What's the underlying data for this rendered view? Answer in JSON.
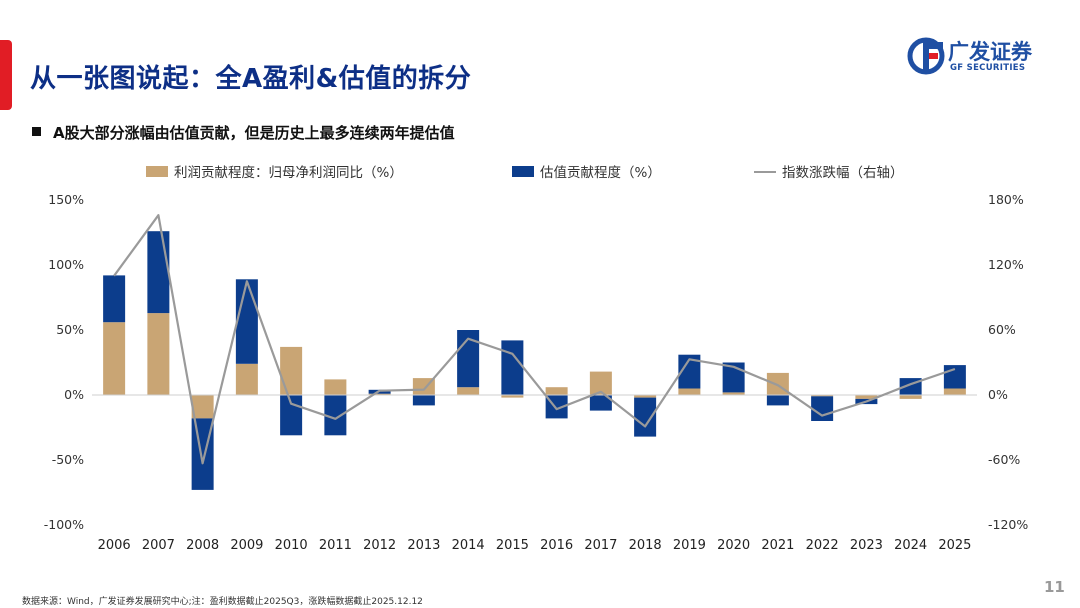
{
  "title": "从一张图说起：全A盈利&估值的拆分",
  "subtitle": "A股大部分涨幅由估值贡献，但是历史上最多连续两年提估值",
  "logo": {
    "cn": "广发证券",
    "en": "GF SECURITIES"
  },
  "footer": {
    "source": "数据来源：Wind，广发证券发展研究中心;注：盈利数据截止2025Q3，涨跌幅数据截止2025.12.12",
    "page": "11"
  },
  "colors": {
    "title": "#0d2f86",
    "profit": "#c9a574",
    "valuation": "#0c3d8c",
    "index": "#9a9a9a",
    "accent": "#e11d25"
  },
  "chart_data": {
    "type": "bar",
    "stacked": true,
    "categories": [
      "2006",
      "2007",
      "2008",
      "2009",
      "2010",
      "2011",
      "2012",
      "2013",
      "2014",
      "2015",
      "2016",
      "2017",
      "2018",
      "2019",
      "2020",
      "2021",
      "2022",
      "2023",
      "2024",
      "2025"
    ],
    "series": [
      {
        "name": "利润贡献程度：归母净利润同比（%）",
        "kind": "bar",
        "axis": "left",
        "values": [
          56,
          63,
          -18,
          24,
          37,
          12,
          1,
          13,
          6,
          -2,
          6,
          18,
          -2,
          5,
          2,
          17,
          -1,
          -3,
          -3,
          5
        ]
      },
      {
        "name": "估值贡献程度（%）",
        "kind": "bar",
        "axis": "left",
        "values": [
          36,
          63,
          -55,
          65,
          -31,
          -31,
          3,
          -8,
          44,
          42,
          -18,
          -12,
          -30,
          26,
          23,
          -8,
          -19,
          -4,
          13,
          18
        ]
      },
      {
        "name": "指数涨跌幅（右轴）",
        "kind": "line",
        "axis": "right",
        "values": [
          110,
          166,
          -63,
          105,
          -8,
          -22,
          4,
          5,
          52,
          38,
          -13,
          3,
          -29,
          33,
          26,
          9,
          -19,
          -6,
          10,
          24
        ]
      }
    ],
    "y_left": {
      "min": -100,
      "max": 150,
      "step": 50,
      "ticks": [
        "150%",
        "100%",
        "50%",
        "0%",
        "-50%",
        "-100%"
      ]
    },
    "y_right": {
      "min": -120,
      "max": 180,
      "step": 60,
      "ticks": [
        "180%",
        "120%",
        "60%",
        "0%",
        "-60%",
        "-120%"
      ]
    },
    "legend_position": "top",
    "grid": false
  }
}
